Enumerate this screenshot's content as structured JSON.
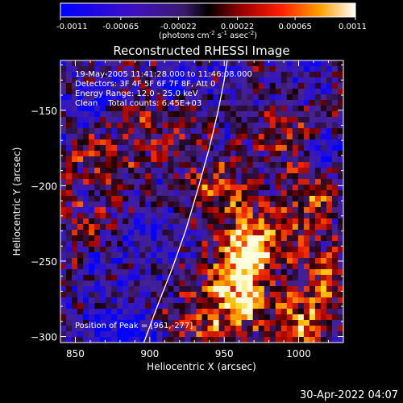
{
  "chart_data": {
    "type": "heatmap",
    "title": "Reconstructed RHESSI Image",
    "xlabel": "Heliocentric X (arcsec)",
    "ylabel": "Heliocentric Y (arcsec)",
    "xlim": [
      840,
      1030
    ],
    "ylim": [
      -304,
      -117
    ],
    "x_ticks": [
      850,
      900,
      950,
      1000
    ],
    "y_ticks": [
      -150,
      -200,
      -250,
      -300
    ],
    "colorbar": {
      "range": [
        -0.0011,
        0.0011
      ],
      "tick_values": [
        -0.0011,
        -0.00065,
        -0.00022,
        0.00022,
        0.00065,
        0.0011
      ],
      "tick_labels": [
        "-0.0011",
        "-0.00065",
        "-0.00022",
        "0.00022",
        "0.00065",
        "0.0011"
      ],
      "units_prefix": "(photons cm",
      "units_sup1": "-2",
      "units_mid1": " s",
      "units_sup2": "-1",
      "units_mid2": " asec",
      "units_sup3": "-2",
      "units_suffix": ")"
    },
    "annotations": [
      "19-May-2005 11:41:28.000 to 11:46:08.000",
      "Detectors: 3F 4F 5F 6F 7F 8F, Att 0",
      "Energy Range: 12.0 - 25.0 keV",
      "Clean    Total counts: 6.45E+03"
    ],
    "peak_label": "Position of Peak = [961,-277]",
    "peak": [
      961,
      -277
    ],
    "limb_curve": [
      [
        896,
        -304
      ],
      [
        905,
        -280
      ],
      [
        915,
        -255
      ],
      [
        924,
        -230
      ],
      [
        933,
        -200
      ],
      [
        940,
        -175
      ],
      [
        946,
        -150
      ],
      [
        950,
        -130
      ],
      [
        952,
        -117
      ]
    ],
    "hot_spots": [
      {
        "x": 975,
        "y": -235,
        "amp": 1.0
      },
      {
        "x": 961,
        "y": -277,
        "amp": 1.1
      },
      {
        "x": 1000,
        "y": -295,
        "amp": 0.9
      },
      {
        "x": 945,
        "y": -200,
        "amp": 0.75
      },
      {
        "x": 1010,
        "y": -210,
        "amp": 0.7
      },
      {
        "x": 870,
        "y": -185,
        "amp": 0.6
      },
      {
        "x": 905,
        "y": -160,
        "amp": 0.5
      },
      {
        "x": 960,
        "y": -250,
        "amp": 0.8
      },
      {
        "x": 1020,
        "y": -260,
        "amp": 0.6
      },
      {
        "x": 930,
        "y": -290,
        "amp": 0.55
      },
      {
        "x": 990,
        "y": -165,
        "amp": 0.5
      },
      {
        "x": 855,
        "y": -230,
        "amp": 0.45
      }
    ],
    "cold_spots": [
      {
        "x": 870,
        "y": -290,
        "amp": 0.9
      },
      {
        "x": 890,
        "y": -300,
        "amp": 1.0
      },
      {
        "x": 860,
        "y": -145,
        "amp": 0.6
      },
      {
        "x": 920,
        "y": -130,
        "amp": 0.7
      },
      {
        "x": 900,
        "y": -230,
        "amp": 0.6
      },
      {
        "x": 865,
        "y": -250,
        "amp": 0.6
      },
      {
        "x": 1015,
        "y": -180,
        "amp": 0.5
      }
    ]
  },
  "footer": {
    "date": "30-Apr-2022 04:07"
  }
}
